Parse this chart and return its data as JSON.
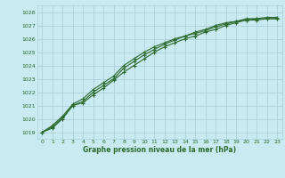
{
  "title": "Graphe pression niveau de la mer (hPa)",
  "bg_color": "#c8eaf0",
  "grid_color": "#aed0dc",
  "line_color": "#2d6a2d",
  "xlim": [
    -0.5,
    23.5
  ],
  "ylim": [
    1018.5,
    1028.5
  ],
  "yticks": [
    1019,
    1020,
    1021,
    1022,
    1023,
    1024,
    1025,
    1026,
    1027,
    1028
  ],
  "xticks": [
    0,
    1,
    2,
    3,
    4,
    5,
    6,
    7,
    8,
    9,
    10,
    11,
    12,
    13,
    14,
    15,
    16,
    17,
    18,
    19,
    20,
    21,
    22,
    23
  ],
  "series": [
    [
      1019.0,
      1019.3,
      1020.0,
      1021.0,
      1021.2,
      1021.8,
      1022.3,
      1022.9,
      1023.5,
      1024.0,
      1024.5,
      1025.0,
      1025.4,
      1025.7,
      1026.0,
      1026.2,
      1026.5,
      1026.7,
      1027.0,
      1027.2,
      1027.4,
      1027.4,
      1027.5,
      1027.5
    ],
    [
      1019.0,
      1019.4,
      1020.1,
      1021.0,
      1021.3,
      1022.0,
      1022.5,
      1023.0,
      1023.8,
      1024.3,
      1024.8,
      1025.2,
      1025.6,
      1025.9,
      1026.2,
      1026.4,
      1026.6,
      1026.9,
      1027.1,
      1027.3,
      1027.4,
      1027.5,
      1027.5,
      1027.5
    ],
    [
      1019.0,
      1019.5,
      1020.2,
      1021.1,
      1021.5,
      1022.2,
      1022.7,
      1023.2,
      1024.0,
      1024.5,
      1025.0,
      1025.4,
      1025.7,
      1026.0,
      1026.2,
      1026.5,
      1026.7,
      1027.0,
      1027.2,
      1027.3,
      1027.5,
      1027.5,
      1027.6,
      1027.6
    ]
  ],
  "tick_fontsize": 4.5,
  "xlabel_fontsize": 5.5
}
